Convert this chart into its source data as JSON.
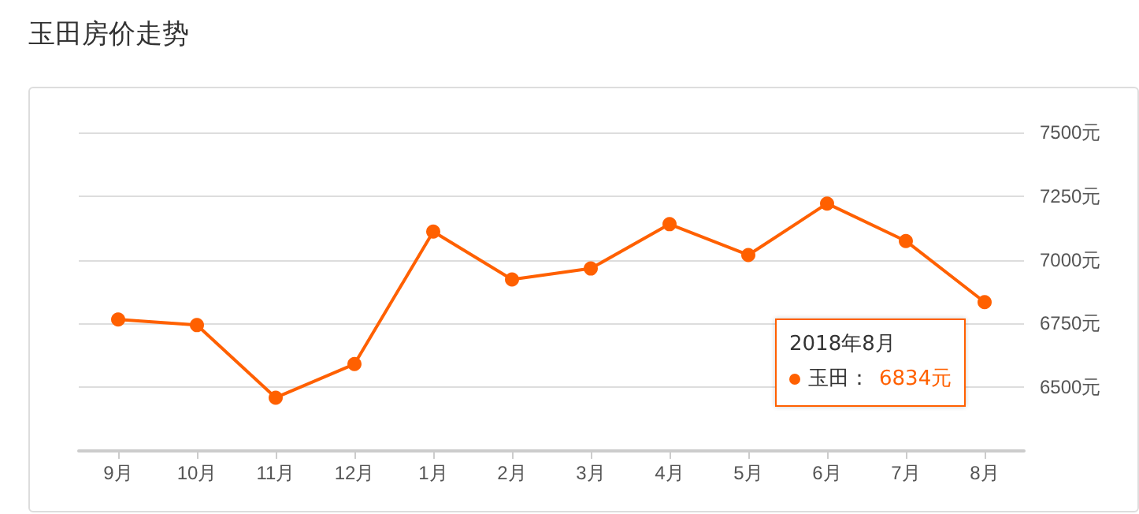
{
  "chart_data": {
    "type": "line",
    "title": "玉田房价走势",
    "categories": [
      "9月",
      "10月",
      "11月",
      "12月",
      "1月",
      "2月",
      "3月",
      "4月",
      "5月",
      "6月",
      "7月",
      "8月"
    ],
    "series": [
      {
        "color": "#ff6000",
        "values": [
          6766,
          6744,
          6459,
          6591,
          7111,
          6923,
          6966,
          7140,
          7019,
          7221,
          7074,
          6834
        ]
      }
    ],
    "ylim": [
      6250,
      7500
    ],
    "yticks": [
      {
        "value": 6500,
        "label": "6500元"
      },
      {
        "value": 6750,
        "label": "6750元"
      },
      {
        "value": 7000,
        "label": "7000元"
      },
      {
        "value": 7250,
        "label": "7250元"
      },
      {
        "value": 7500,
        "label": "7500元"
      }
    ],
    "annotations": [
      "2018年8月",
      "玉田：",
      "6834元"
    ],
    "grid": "y",
    "marker": "circle",
    "line_style": "solid"
  }
}
